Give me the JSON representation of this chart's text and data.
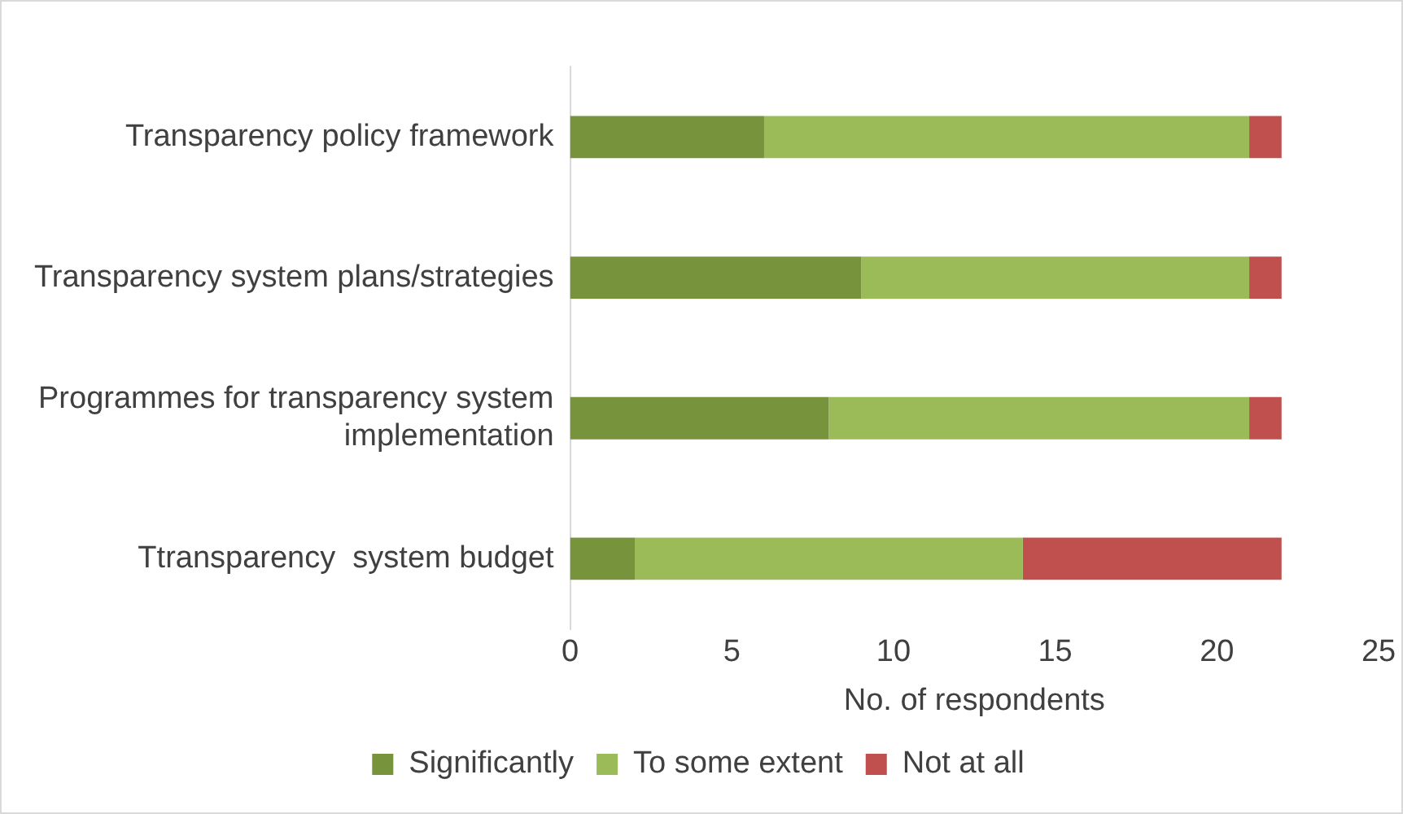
{
  "chart_data": {
    "type": "bar",
    "orientation": "horizontal",
    "stacked": true,
    "xlabel": "No. of respondents",
    "categories": [
      "Transparency policy framework",
      "Transparency system plans/strategies",
      "Programmes for transparency system implementation",
      "Ttransparency  system budget"
    ],
    "series": [
      {
        "name": "Significantly",
        "color": "#77933c",
        "values": [
          6,
          9,
          8,
          2
        ]
      },
      {
        "name": "To some extent",
        "color": "#9bbb59",
        "values": [
          15,
          12,
          13,
          12
        ]
      },
      {
        "name": "Not at all",
        "color": "#c0504d",
        "values": [
          1,
          1,
          1,
          8
        ]
      }
    ],
    "xlim": [
      0,
      25
    ],
    "xticks": [
      0,
      5,
      10,
      15,
      20,
      25
    ],
    "grid": false,
    "legend": "bottom"
  }
}
